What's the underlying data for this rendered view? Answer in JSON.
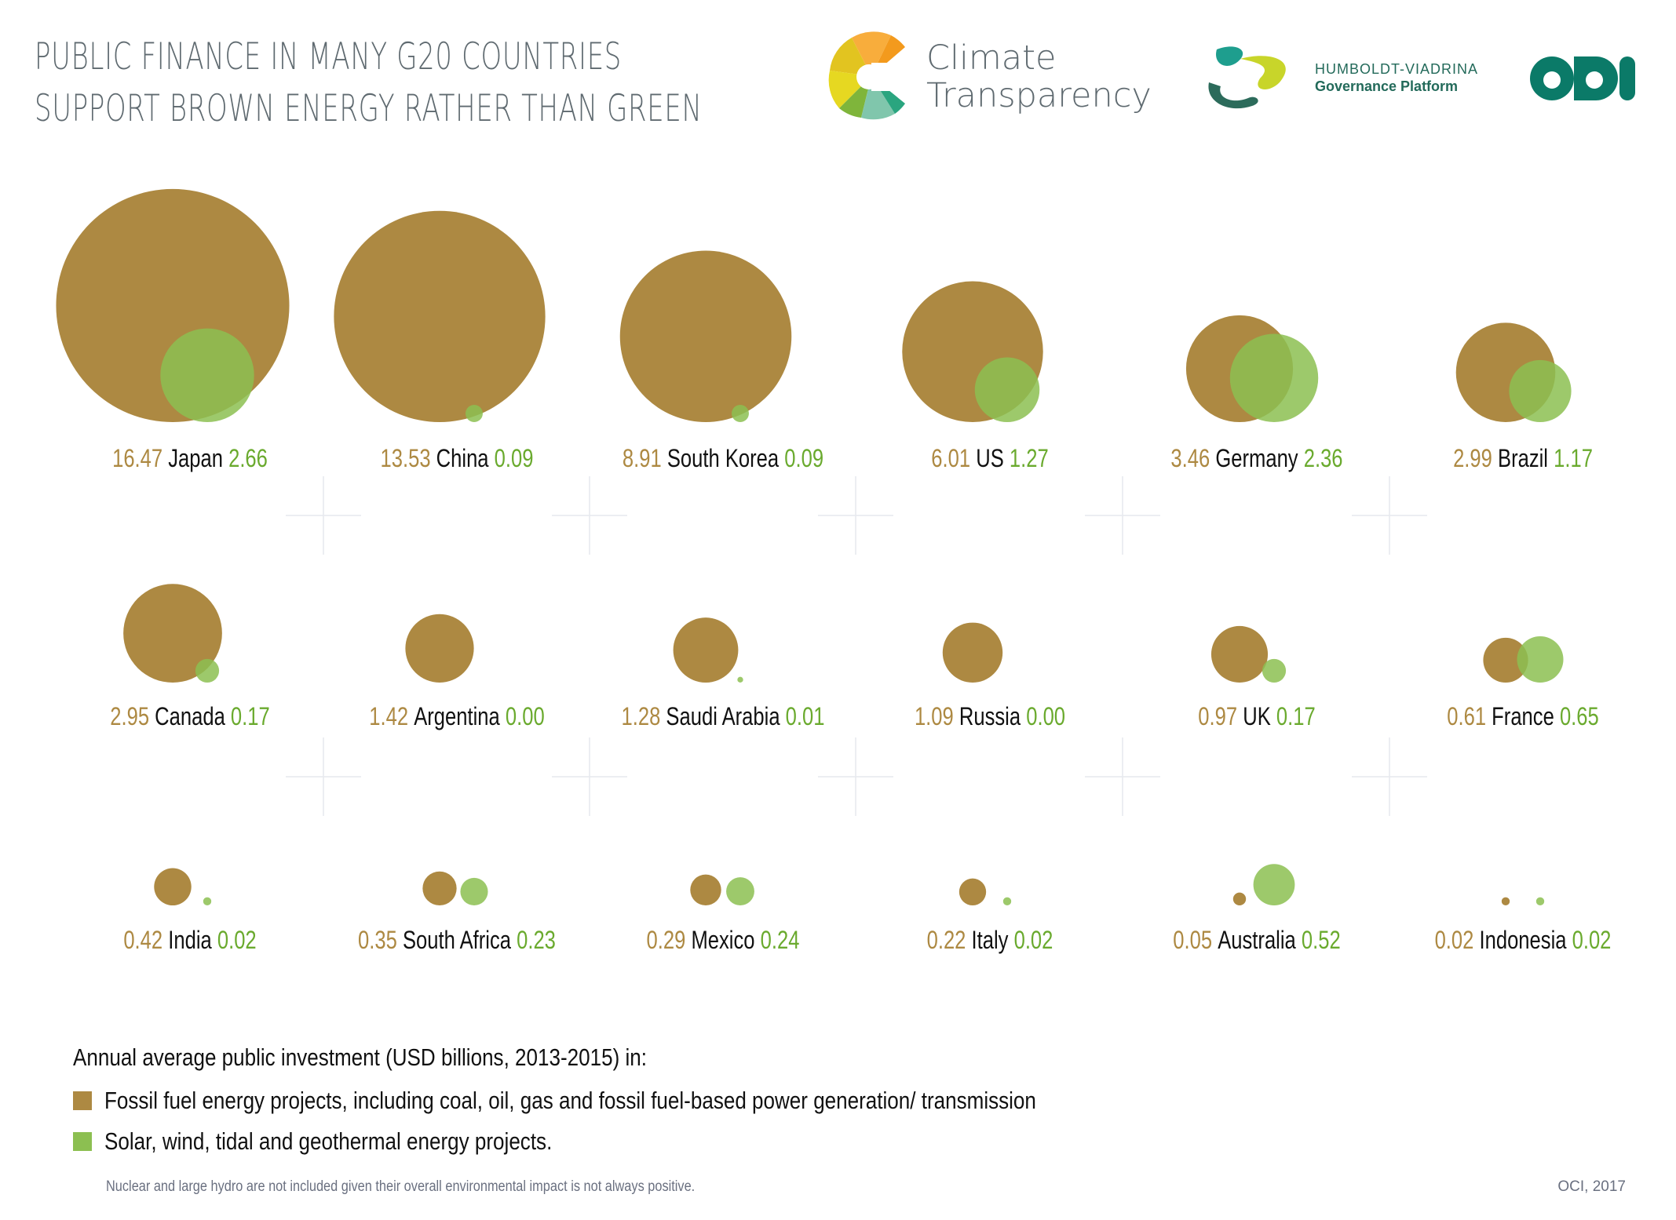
{
  "header": {
    "title_line1": "PUBLIC FINANCE IN MANY G20 COUNTRIES",
    "title_line2": "SUPPORT BROWN ENERGY RATHER THAN GREEN"
  },
  "logos": {
    "climate_transparency": {
      "line1": "Climate",
      "line2": "Transparency"
    },
    "humboldt": {
      "line1": "HUMBOLDT-VIADRINA",
      "line2": "Governance Platform"
    },
    "odi": {
      "text": "ODI"
    }
  },
  "colors": {
    "fossil": "#ad8942",
    "renewable": "#8cbf51",
    "renewable_text": "#6aaa2e",
    "title": "#5f6a70",
    "country_text": "#111111",
    "grid_cross": "#e6e9ee"
  },
  "chart_data": {
    "type": "bubble-pairs",
    "title": "Public finance in many G20 countries support brown energy rather than green",
    "unit": "USD billions, annual average 2013-2015",
    "series": [
      {
        "name": "Fossil fuel energy projects",
        "color": "#ad8942"
      },
      {
        "name": "Solar, wind, tidal and geothermal energy projects",
        "color": "#8cbf51"
      }
    ],
    "countries": [
      {
        "name": "Japan",
        "fossil": 16.47,
        "renewable": 2.66,
        "fossil_label": "16.47",
        "renewable_label": "2.66"
      },
      {
        "name": "China",
        "fossil": 13.53,
        "renewable": 0.09,
        "fossil_label": "13.53",
        "renewable_label": "0.09"
      },
      {
        "name": "South Korea",
        "fossil": 8.91,
        "renewable": 0.09,
        "fossil_label": "8.91",
        "renewable_label": "0.09"
      },
      {
        "name": "US",
        "fossil": 6.01,
        "renewable": 1.27,
        "fossil_label": "6.01",
        "renewable_label": "1.27"
      },
      {
        "name": "Germany",
        "fossil": 3.46,
        "renewable": 2.36,
        "fossil_label": "3.46",
        "renewable_label": "2.36"
      },
      {
        "name": "Brazil",
        "fossil": 2.99,
        "renewable": 1.17,
        "fossil_label": "2.99",
        "renewable_label": "1.17"
      },
      {
        "name": "Canada",
        "fossil": 2.95,
        "renewable": 0.17,
        "fossil_label": "2.95",
        "renewable_label": "0.17"
      },
      {
        "name": "Argentina",
        "fossil": 1.42,
        "renewable": 0.0,
        "fossil_label": "1.42",
        "renewable_label": "0.00"
      },
      {
        "name": "Saudi Arabia",
        "fossil": 1.28,
        "renewable": 0.01,
        "fossil_label": "1.28",
        "renewable_label": "0.01"
      },
      {
        "name": "Russia",
        "fossil": 1.09,
        "renewable": 0.0,
        "fossil_label": "1.09",
        "renewable_label": "0.00"
      },
      {
        "name": "UK",
        "fossil": 0.97,
        "renewable": 0.17,
        "fossil_label": "0.97",
        "renewable_label": "0.17"
      },
      {
        "name": "France",
        "fossil": 0.61,
        "renewable": 0.65,
        "fossil_label": "0.61",
        "renewable_label": "0.65"
      },
      {
        "name": "India",
        "fossil": 0.42,
        "renewable": 0.02,
        "fossil_label": "0.42",
        "renewable_label": "0.02"
      },
      {
        "name": "South Africa",
        "fossil": 0.35,
        "renewable": 0.23,
        "fossil_label": "0.35",
        "renewable_label": "0.23"
      },
      {
        "name": "Mexico",
        "fossil": 0.29,
        "renewable": 0.24,
        "fossil_label": "0.29",
        "renewable_label": "0.24"
      },
      {
        "name": "Italy",
        "fossil": 0.22,
        "renewable": 0.02,
        "fossil_label": "0.22",
        "renewable_label": "0.02"
      },
      {
        "name": "Australia",
        "fossil": 0.05,
        "renewable": 0.52,
        "fossil_label": "0.05",
        "renewable_label": "0.52"
      },
      {
        "name": "Indonesia",
        "fossil": 0.02,
        "renewable": 0.02,
        "fossil_label": "0.02",
        "renewable_label": "0.02"
      }
    ],
    "grid": "crosshair markers between cells",
    "legend_placement": "bottom-left"
  },
  "legend": {
    "title": "Annual average public investment (USD billions, 2013-2015) in:",
    "items": [
      {
        "label": "Fossil fuel energy projects, including coal, oil, gas and fossil fuel-based power generation/ transmission",
        "color": "#ad8942"
      },
      {
        "label": "Solar, wind, tidal and geothermal energy projects.",
        "color": "#8cbf51"
      }
    ]
  },
  "footer": {
    "note": "Nuclear and large hydro are not included given their overall environmental impact is not always positive.",
    "source": "OCI, 2017"
  }
}
